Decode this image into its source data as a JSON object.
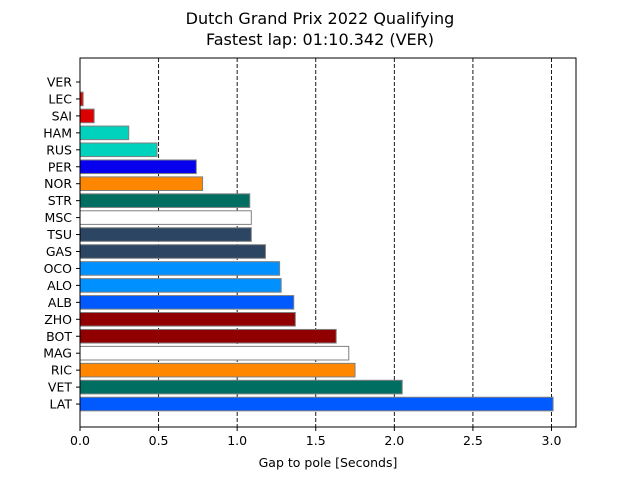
{
  "chart_data": {
    "type": "bar",
    "orientation": "horizontal",
    "title": "Dutch Grand Prix 2022 Qualifying",
    "subtitle": "Fastest lap: 01:10.342 (VER)",
    "xlabel": "Gap to pole [Seconds]",
    "ylabel": "",
    "xlim": [
      0,
      3.16
    ],
    "xticks": [
      0.0,
      0.5,
      1.0,
      1.5,
      2.0,
      2.5,
      3.0
    ],
    "xtick_labels": [
      "0.0",
      "0.5",
      "1.0",
      "1.5",
      "2.0",
      "2.5",
      "3.0"
    ],
    "grid": "vertical dashed lines at x ticks",
    "categories": [
      "VER",
      "LEC",
      "SAI",
      "HAM",
      "RUS",
      "PER",
      "NOR",
      "STR",
      "MSC",
      "TSU",
      "GAS",
      "OCO",
      "ALO",
      "ALB",
      "ZHO",
      "BOT",
      "MAG",
      "RIC",
      "VET",
      "LAT"
    ],
    "values": [
      0.0,
      0.02,
      0.09,
      0.31,
      0.49,
      0.74,
      0.78,
      1.08,
      1.09,
      1.09,
      1.18,
      1.27,
      1.28,
      1.36,
      1.37,
      1.63,
      1.71,
      1.75,
      2.05,
      3.01
    ],
    "colors": [
      "#1e41ff",
      "#dc0000",
      "#dc0000",
      "#00d2be",
      "#00d2be",
      "#0600ef",
      "#ff8700",
      "#006f62",
      "#ffffff",
      "#2b4562",
      "#2b4562",
      "#0090ff",
      "#0090ff",
      "#005aff",
      "#900000",
      "#900000",
      "#ffffff",
      "#ff8700",
      "#006f62",
      "#005aff"
    ],
    "bar_edge_color": "#808080"
  }
}
